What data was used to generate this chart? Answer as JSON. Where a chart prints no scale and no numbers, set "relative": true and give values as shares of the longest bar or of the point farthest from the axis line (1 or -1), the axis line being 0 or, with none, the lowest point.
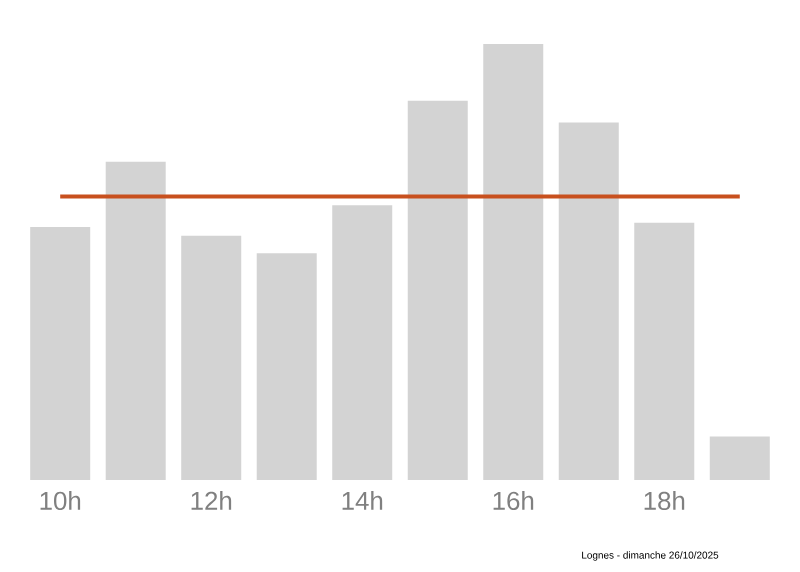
{
  "chart_data": {
    "type": "bar",
    "relative": true,
    "categories": [
      "10h",
      null,
      "12h",
      null,
      "14h",
      null,
      "16h",
      null,
      "18h",
      null
    ],
    "values": [
      0.58,
      0.73,
      0.56,
      0.52,
      0.63,
      0.87,
      1,
      0.82,
      0.59,
      0.1
    ],
    "color": "#d3d3d3",
    "ref_lines": [
      {
        "axis": "y",
        "value": 0.65,
        "color": "#c8501e"
      }
    ],
    "annotations": [
      "Lognes - dimanche 26/10/2025"
    ]
  }
}
